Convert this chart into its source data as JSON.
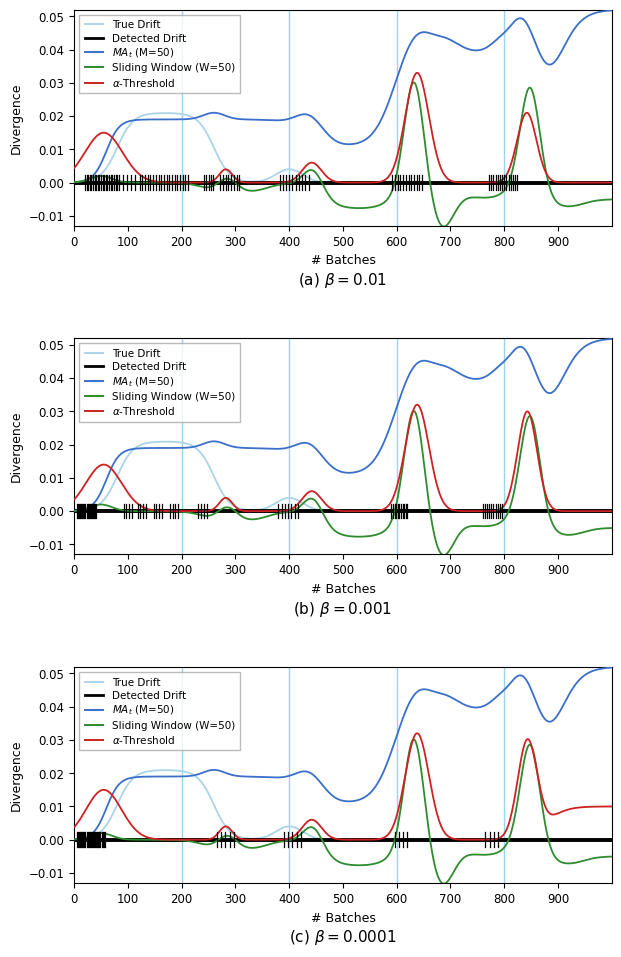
{
  "xlim": [
    0,
    1000
  ],
  "ylim": [
    -0.013,
    0.052
  ],
  "yticks": [
    -0.01,
    0.0,
    0.01,
    0.02,
    0.03,
    0.04,
    0.05
  ],
  "xticks": [
    0,
    100,
    200,
    300,
    400,
    500,
    600,
    700,
    800,
    900
  ],
  "xlabel": "# Batches",
  "ylabel": "Divergence",
  "true_drift_color": "#aad4e8",
  "ma_color": "#3a6fca",
  "sw_color": "#2e8b2e",
  "threshold_color": "#cc2222",
  "detected_color": "#000000",
  "vline_color": "#87ceeb",
  "vline_positions": [
    200,
    400,
    600,
    800
  ],
  "fig_width": 6.4,
  "fig_height": 9.39,
  "captions": [
    "(a) $\\beta = 0.01$",
    "(b) $\\beta = 0.001$",
    "(c) $\\beta = 0.0001$"
  ]
}
